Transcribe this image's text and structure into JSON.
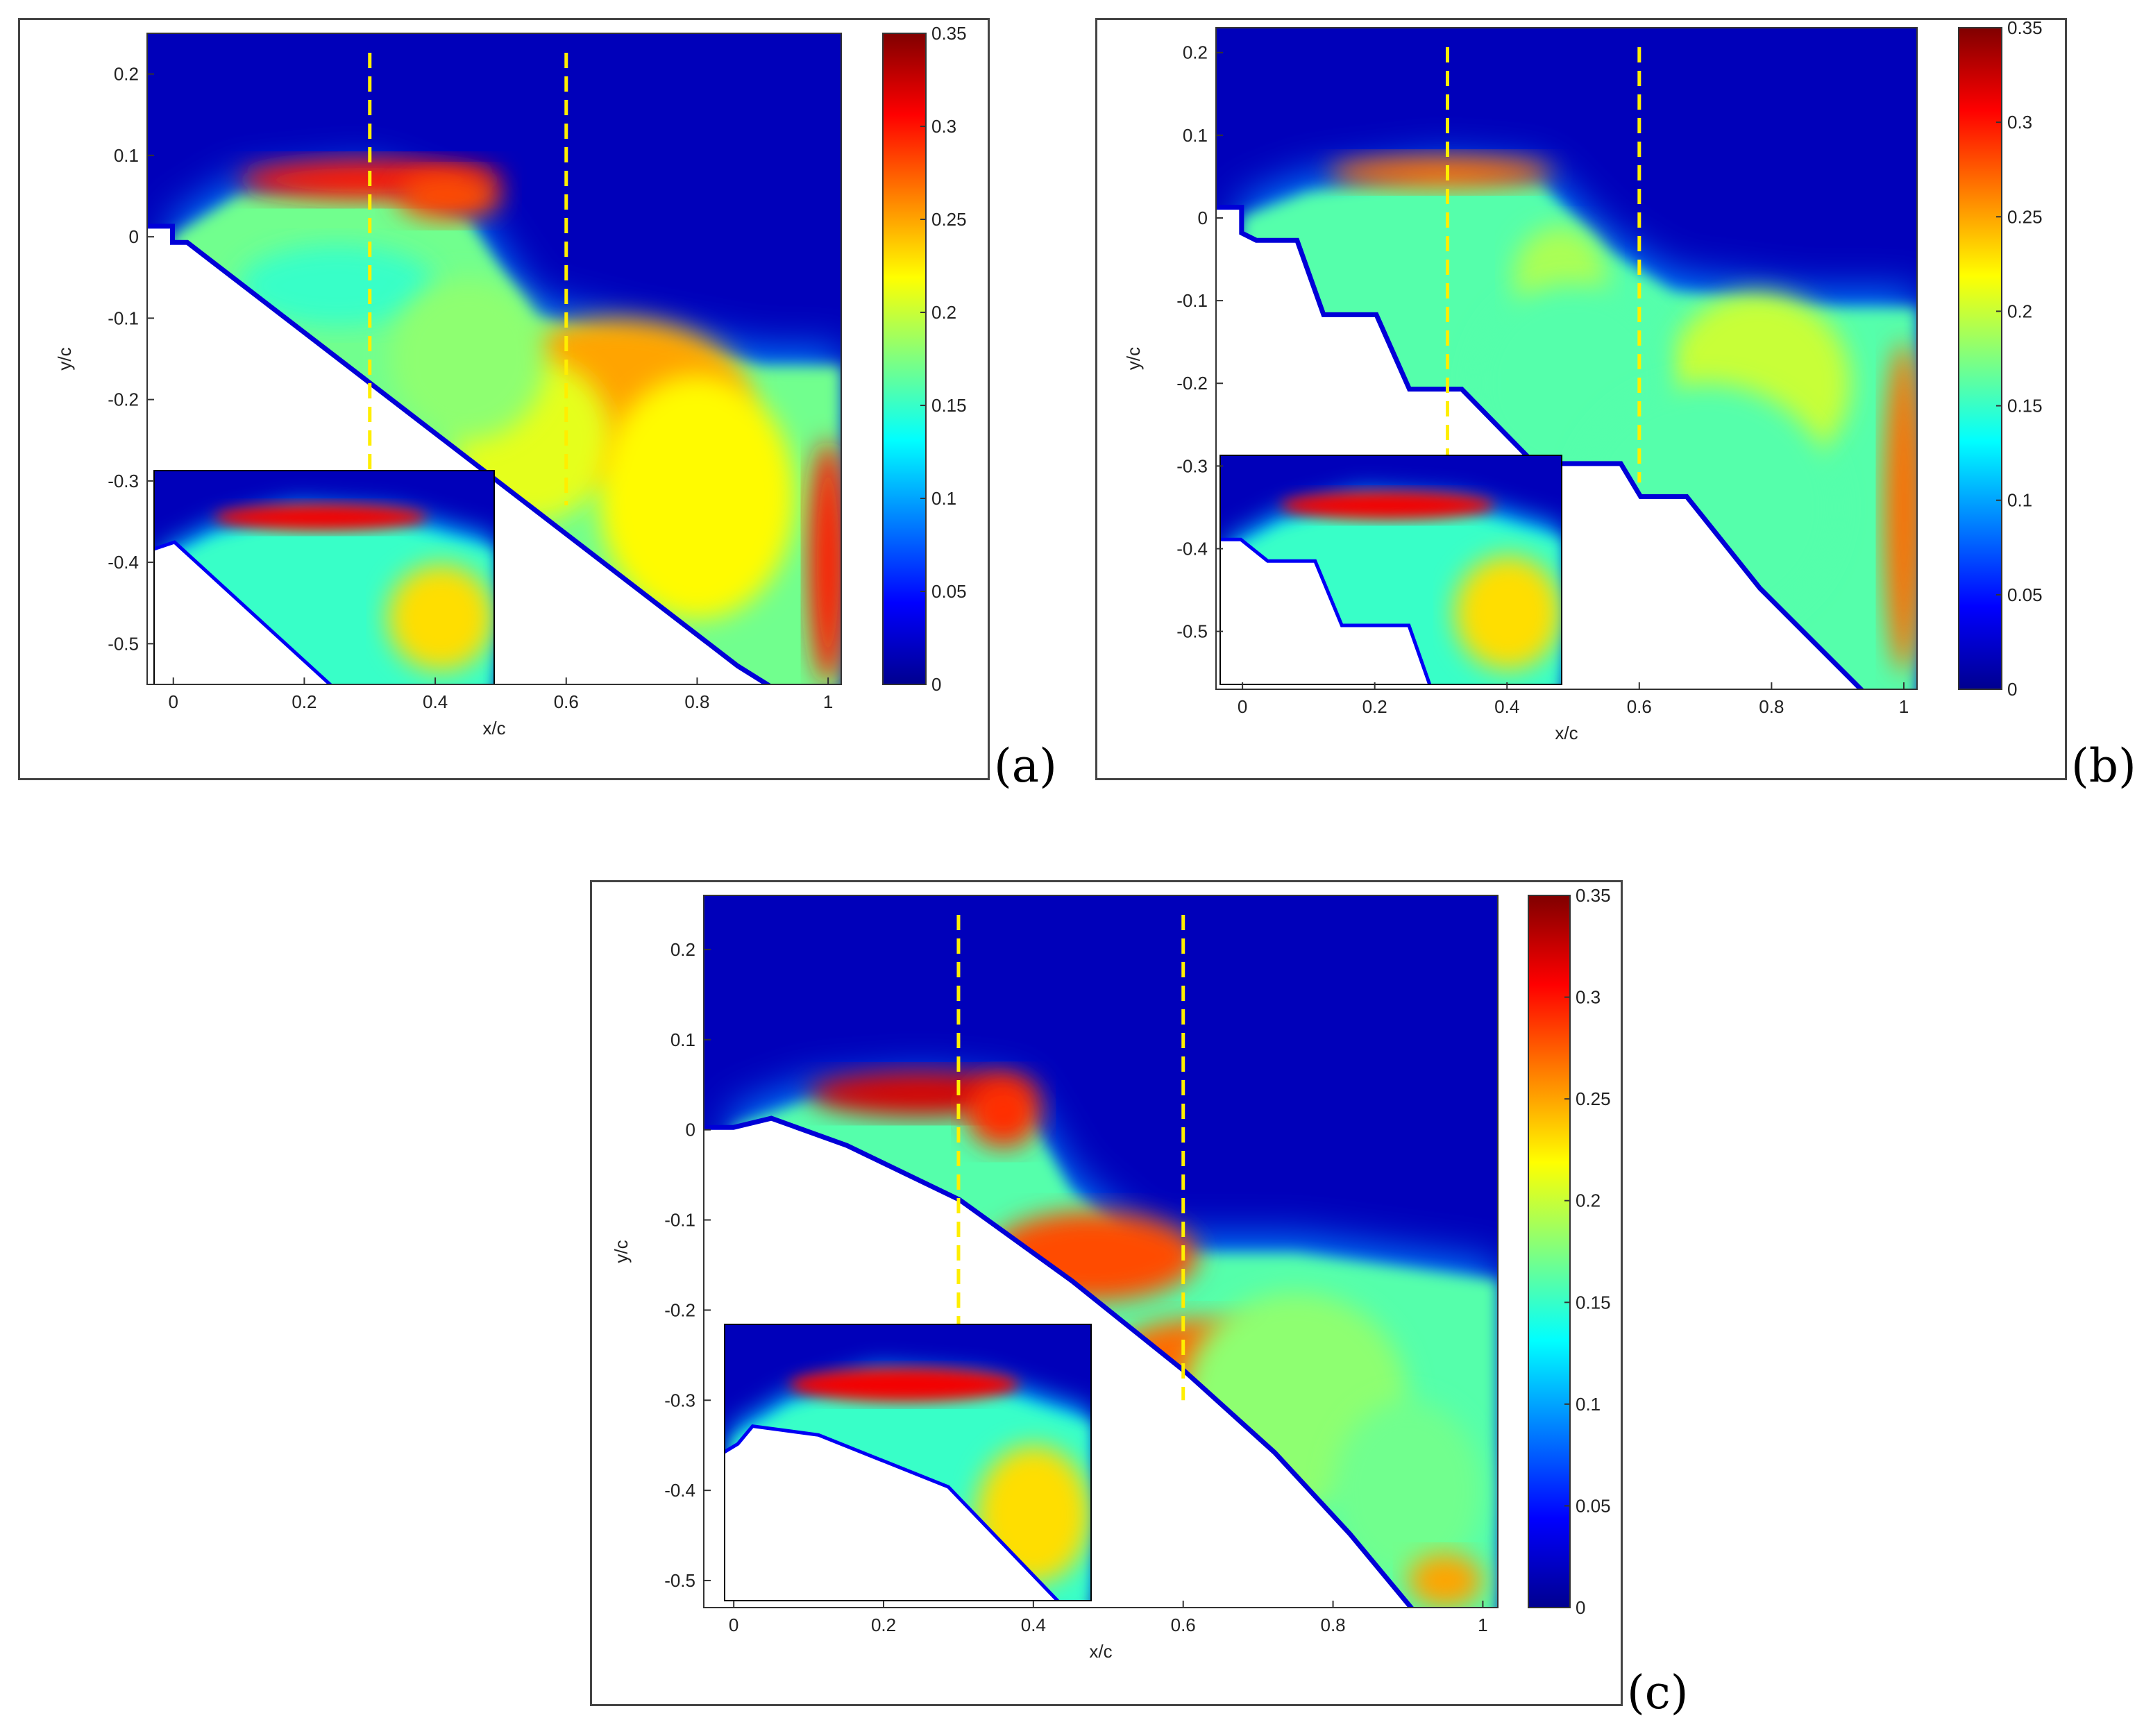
{
  "figure": {
    "panels": [
      {
        "id": "a",
        "label": "(a)"
      },
      {
        "id": "b",
        "label": "(b)"
      },
      {
        "id": "c",
        "label": "(c)"
      }
    ]
  },
  "chart_data": [
    {
      "type": "heatmap",
      "panel": "(a)",
      "xlabel": "x/c",
      "ylabel": "y/c",
      "xlim": [
        -0.04,
        1.02
      ],
      "ylim": [
        -0.55,
        0.25
      ],
      "xticks": [
        0,
        0.2,
        0.4,
        0.6,
        0.8,
        1
      ],
      "xtick_labels": [
        "0",
        "0.2",
        "0.4",
        "0.6",
        "0.8",
        "1"
      ],
      "yticks": [
        0.2,
        0.1,
        0,
        -0.1,
        -0.2,
        -0.3,
        -0.4,
        -0.5
      ],
      "ytick_labels": [
        "0.2",
        "0.1",
        "0",
        "-0.1",
        "-0.2",
        "-0.3",
        "-0.4",
        "-0.5"
      ],
      "colorbar": {
        "range": [
          0,
          0.35
        ],
        "ticks": [
          0,
          0.05,
          0.1,
          0.15,
          0.2,
          0.25,
          0.3,
          0.35
        ],
        "tick_labels": [
          "0",
          "0.05",
          "0.1",
          "0.15",
          "0.2",
          "0.25",
          "0.3",
          "0.35"
        ],
        "colormap": "jet"
      },
      "dashed_lines_x": [
        0.3,
        0.6
      ],
      "dashed_line_color": "#ffee00",
      "inset": "zoom of leading-edge region",
      "geometry": "ramp"
    },
    {
      "type": "heatmap",
      "panel": "(b)",
      "xlabel": "x/c",
      "ylabel": "y/c",
      "xlim": [
        -0.04,
        1.02
      ],
      "ylim": [
        -0.57,
        0.23
      ],
      "xticks": [
        0,
        0.2,
        0.4,
        0.6,
        0.8,
        1
      ],
      "xtick_labels": [
        "0",
        "0.2",
        "0.4",
        "0.6",
        "0.8",
        "1"
      ],
      "yticks": [
        0.2,
        0.1,
        0,
        -0.1,
        -0.2,
        -0.3,
        -0.4,
        -0.5
      ],
      "ytick_labels": [
        "0.2",
        "0.1",
        "0",
        "-0.1",
        "-0.2",
        "-0.3",
        "-0.4",
        "-0.5"
      ],
      "colorbar": {
        "range": [
          0,
          0.35
        ],
        "ticks": [
          0,
          0.05,
          0.1,
          0.15,
          0.2,
          0.25,
          0.3,
          0.35
        ],
        "tick_labels": [
          "0",
          "0.05",
          "0.1",
          "0.15",
          "0.2",
          "0.25",
          "0.3",
          "0.35"
        ],
        "colormap": "jet"
      },
      "dashed_lines_x": [
        0.31,
        0.6
      ],
      "dashed_line_color": "#ffee00",
      "inset": "zoom of leading-edge region",
      "geometry": "stepped"
    },
    {
      "type": "heatmap",
      "panel": "(c)",
      "xlabel": "x/c",
      "ylabel": "y/c",
      "xlim": [
        -0.04,
        1.02
      ],
      "ylim": [
        -0.53,
        0.26
      ],
      "xticks": [
        0,
        0.2,
        0.4,
        0.6,
        0.8,
        1
      ],
      "xtick_labels": [
        "0",
        "0.2",
        "0.4",
        "0.6",
        "0.8",
        "1"
      ],
      "yticks": [
        0.2,
        0.1,
        0,
        -0.1,
        -0.2,
        -0.3,
        -0.4,
        -0.5
      ],
      "ytick_labels": [
        "0.2",
        "0.1",
        "0",
        "-0.1",
        "-0.2",
        "-0.3",
        "-0.4",
        "-0.5"
      ],
      "colorbar": {
        "range": [
          0,
          0.35
        ],
        "ticks": [
          0,
          0.05,
          0.1,
          0.15,
          0.2,
          0.25,
          0.3,
          0.35
        ],
        "tick_labels": [
          "0",
          "0.05",
          "0.1",
          "0.15",
          "0.2",
          "0.25",
          "0.3",
          "0.35"
        ],
        "colormap": "jet"
      },
      "dashed_lines_x": [
        0.3,
        0.6
      ],
      "dashed_line_color": "#ffee00",
      "inset": "zoom of leading-edge region",
      "geometry": "curved"
    }
  ]
}
